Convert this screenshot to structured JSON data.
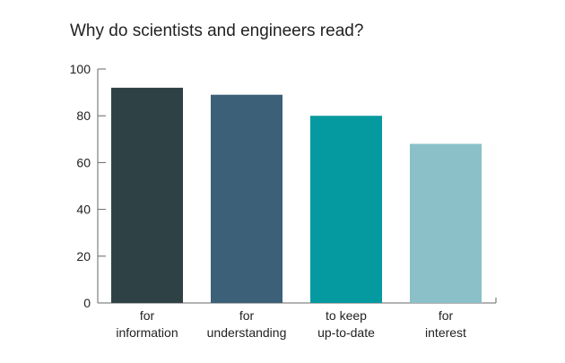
{
  "chart_data": {
    "type": "bar",
    "title": "Why do scientists and engineers read?",
    "categories": [
      [
        "for",
        "information"
      ],
      [
        "for",
        "understanding"
      ],
      [
        "to keep",
        "up-to-date"
      ],
      [
        "for",
        "interest"
      ]
    ],
    "values": [
      92,
      89,
      80,
      68
    ],
    "colors": [
      "#2e4246",
      "#3b6078",
      "#059aa0",
      "#8bc0c8"
    ],
    "ylim": [
      0,
      100
    ],
    "yticks": [
      0,
      20,
      40,
      60,
      80,
      100
    ],
    "grid": false,
    "xlabel": "",
    "ylabel": ""
  }
}
